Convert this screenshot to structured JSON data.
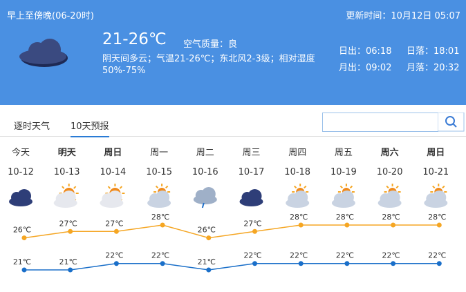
{
  "header": {
    "period": "早上至傍晚(06-20时)",
    "update_time": "更新时间：10月12日 05:07",
    "temperature": "21-26℃",
    "air_quality": "空气质量：良",
    "description": "阴天间多云；气温21-26℃；东北风2-3级；相对湿度50%-75%",
    "sunrise": "日出：06:18",
    "sunset": "日落：18:01",
    "moonrise": "月出：09:02",
    "moonset": "月落：20:32"
  },
  "tabs": [
    "逐时天气",
    "10天预报"
  ],
  "chart_data": {
    "type": "line",
    "days": [
      "今天",
      "明天",
      "周日",
      "周一",
      "周二",
      "周三",
      "周四",
      "周五",
      "周六",
      "周日"
    ],
    "categories": [
      "10-12",
      "10-13",
      "10-14",
      "10-15",
      "10-16",
      "10-17",
      "10-18",
      "10-19",
      "10-20",
      "10-21"
    ],
    "series": [
      {
        "color": "#f5a623",
        "values": [
          26,
          27,
          27,
          28,
          26,
          27,
          28,
          28,
          28,
          28
        ],
        "value_labels": [
          "26℃",
          "27℃",
          "27℃",
          "28℃",
          "26℃",
          "27℃",
          "28℃",
          "28℃",
          "28℃",
          "28℃"
        ]
      },
      {
        "color": "#1a6fc9",
        "values": [
          21,
          21,
          22,
          22,
          21,
          22,
          22,
          22,
          22,
          22
        ],
        "value_labels": [
          "21℃",
          "21℃",
          "22℃",
          "22℃",
          "21℃",
          "22℃",
          "22℃",
          "22℃",
          "22℃",
          "22℃"
        ]
      }
    ]
  }
}
